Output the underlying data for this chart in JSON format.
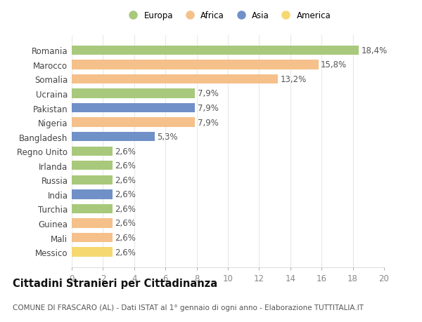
{
  "countries": [
    "Messico",
    "Mali",
    "Guinea",
    "Turchia",
    "India",
    "Russia",
    "Irlanda",
    "Regno Unito",
    "Bangladesh",
    "Nigeria",
    "Pakistan",
    "Ucraina",
    "Somalia",
    "Marocco",
    "Romania"
  ],
  "values": [
    2.6,
    2.6,
    2.6,
    2.6,
    2.6,
    2.6,
    2.6,
    2.6,
    5.3,
    7.9,
    7.9,
    7.9,
    13.2,
    15.8,
    18.4
  ],
  "labels": [
    "2,6%",
    "2,6%",
    "2,6%",
    "2,6%",
    "2,6%",
    "2,6%",
    "2,6%",
    "2,6%",
    "5,3%",
    "7,9%",
    "7,9%",
    "7,9%",
    "13,2%",
    "15,8%",
    "18,4%"
  ],
  "continents": [
    "America",
    "Africa",
    "Africa",
    "Europa",
    "Asia",
    "Europa",
    "Europa",
    "Europa",
    "Asia",
    "Africa",
    "Asia",
    "Europa",
    "Africa",
    "Africa",
    "Europa"
  ],
  "continent_colors": {
    "Europa": "#a8c97b",
    "Africa": "#f5c08a",
    "Asia": "#7090c8",
    "America": "#f5d870"
  },
  "legend_order": [
    "Europa",
    "Africa",
    "Asia",
    "America"
  ],
  "legend_colors": [
    "#a8c97b",
    "#f5c08a",
    "#7090c8",
    "#f5d870"
  ],
  "xlim": [
    0,
    20
  ],
  "xticks": [
    0,
    2,
    4,
    6,
    8,
    10,
    12,
    14,
    16,
    18,
    20
  ],
  "title": "Cittadini Stranieri per Cittadinanza",
  "subtitle": "COMUNE DI FRASCARO (AL) - Dati ISTAT al 1° gennaio di ogni anno - Elaborazione TUTTITALIA.IT",
  "background_color": "#ffffff",
  "grid_color": "#e8e8e8",
  "bar_height": 0.65,
  "label_fontsize": 8.5,
  "tick_fontsize": 8.5,
  "title_fontsize": 10.5,
  "subtitle_fontsize": 7.5
}
